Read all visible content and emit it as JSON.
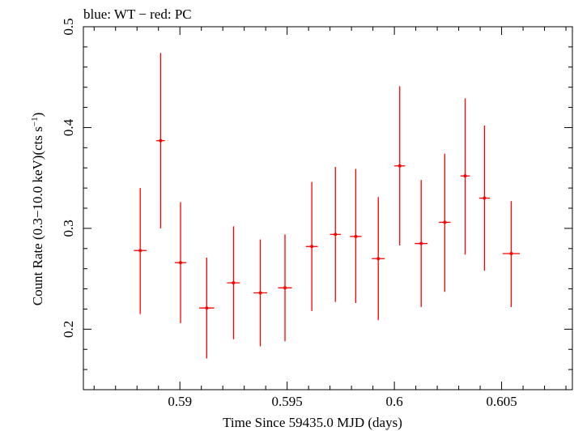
{
  "chart_data": {
    "type": "scatter",
    "title": "blue: WT − red: PC",
    "xlabel": "Time Since 59435.0 MJD (days)",
    "ylabel_main": "Count Rate (0.3−10.0 keV)(cts s",
    "ylabel_sup": "−1",
    "ylabel_close": ")",
    "xlim": [
      0.5855,
      0.6083
    ],
    "ylim": [
      0.14,
      0.5
    ],
    "x_ticks": [
      0.59,
      0.595,
      0.6,
      0.605
    ],
    "x_tick_labels": [
      "0.59",
      "0.595",
      "0.6",
      "0.605"
    ],
    "y_ticks": [
      0.2,
      0.3,
      0.4,
      0.5
    ],
    "y_tick_labels": [
      "0.2",
      "0.3",
      "0.4",
      "0.5"
    ],
    "grid": false,
    "series": [
      {
        "color": "#ff0000",
        "points": [
          {
            "x": 0.58815,
            "xerr": 0.0003,
            "y": 0.278,
            "ylo": 0.215,
            "yhi": 0.34
          },
          {
            "x": 0.5891,
            "xerr": 0.0002,
            "y": 0.387,
            "ylo": 0.3,
            "yhi": 0.474
          },
          {
            "x": 0.59003,
            "xerr": 0.00027,
            "y": 0.266,
            "ylo": 0.206,
            "yhi": 0.326
          },
          {
            "x": 0.59125,
            "xerr": 0.00035,
            "y": 0.221,
            "ylo": 0.171,
            "yhi": 0.271
          },
          {
            "x": 0.5925,
            "xerr": 0.0003,
            "y": 0.246,
            "ylo": 0.19,
            "yhi": 0.302
          },
          {
            "x": 0.59375,
            "xerr": 0.00032,
            "y": 0.236,
            "ylo": 0.183,
            "yhi": 0.289
          },
          {
            "x": 0.5949,
            "xerr": 0.00032,
            "y": 0.241,
            "ylo": 0.188,
            "yhi": 0.294
          },
          {
            "x": 0.59615,
            "xerr": 0.00028,
            "y": 0.282,
            "ylo": 0.218,
            "yhi": 0.346
          },
          {
            "x": 0.59725,
            "xerr": 0.00025,
            "y": 0.294,
            "ylo": 0.227,
            "yhi": 0.361
          },
          {
            "x": 0.5982,
            "xerr": 0.00027,
            "y": 0.292,
            "ylo": 0.226,
            "yhi": 0.359
          },
          {
            "x": 0.59925,
            "xerr": 0.0003,
            "y": 0.27,
            "ylo": 0.209,
            "yhi": 0.331
          },
          {
            "x": 0.60025,
            "xerr": 0.00025,
            "y": 0.362,
            "ylo": 0.283,
            "yhi": 0.441
          },
          {
            "x": 0.60125,
            "xerr": 0.0003,
            "y": 0.285,
            "ylo": 0.222,
            "yhi": 0.348
          },
          {
            "x": 0.60235,
            "xerr": 0.00027,
            "y": 0.306,
            "ylo": 0.237,
            "yhi": 0.374
          },
          {
            "x": 0.6033,
            "xerr": 0.00022,
            "y": 0.352,
            "ylo": 0.274,
            "yhi": 0.429
          },
          {
            "x": 0.6042,
            "xerr": 0.00025,
            "y": 0.33,
            "ylo": 0.258,
            "yhi": 0.402
          },
          {
            "x": 0.60545,
            "xerr": 0.0004,
            "y": 0.275,
            "ylo": 0.222,
            "yhi": 0.327
          }
        ]
      }
    ]
  }
}
